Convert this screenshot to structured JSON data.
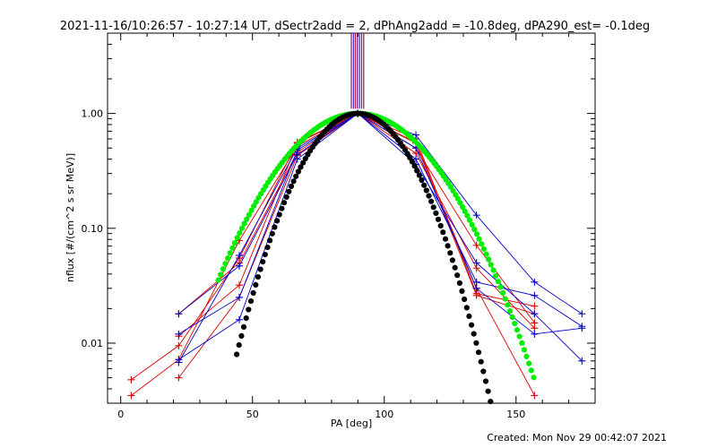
{
  "title": "2021-11-16/10:26:57 - 10:27:14 UT, dSectr2add = 2, dPhAng2add = -10.8deg, dPA290_est= -0.1deg",
  "footer": "Created: Mon Nov 29 00:42:07 2021",
  "colors": {
    "red": "#dd0000",
    "blue": "#0000cc",
    "green": "#00ee00",
    "black": "#000000",
    "purple": "#7a0a9a"
  },
  "chart_data": {
    "type": "line",
    "xlabel": "PA [deg]",
    "ylabel": "nflux [#/(cm^2 s sr MeV)]",
    "xlim": [
      -5,
      180
    ],
    "ylim": [
      0.003,
      5.0
    ],
    "yscale": "log",
    "x_ticks": [
      0,
      50,
      100,
      150
    ],
    "y_ticks": [
      0.01,
      0.1,
      1.0
    ],
    "x_tick_labels": [
      "0",
      "50",
      "100",
      "150"
    ],
    "y_tick_labels": [
      "0.01",
      "0.10",
      "1.00"
    ],
    "grid": false,
    "vertical_markers": {
      "x": [
        87.5,
        88.3,
        89.0,
        89.8,
        90.6,
        91.4,
        92.2
      ],
      "y_bottom": 1.1,
      "colors": [
        "#8a1070",
        "#2a2ad0",
        "#d01010",
        "#7a0a9a",
        "#2a2ad0",
        "#d01010",
        "#8a1070"
      ]
    },
    "series": [
      {
        "color": "#dd0000",
        "points": [
          [
            4,
            0.0048
          ],
          [
            22,
            0.0095
          ],
          [
            45,
            0.055
          ],
          [
            67,
            0.56
          ],
          [
            90,
            1.0
          ],
          [
            112,
            0.6
          ],
          [
            135,
            0.027
          ],
          [
            157,
            0.021
          ]
        ]
      },
      {
        "color": "#dd0000",
        "points": [
          [
            4,
            0.0035
          ],
          [
            22,
            0.0072
          ],
          [
            45,
            0.078
          ],
          [
            67,
            0.52
          ],
          [
            90,
            1.0
          ],
          [
            112,
            0.56
          ],
          [
            135,
            0.03
          ],
          [
            157,
            0.0035
          ]
        ]
      },
      {
        "color": "#dd0000",
        "points": [
          [
            22,
            0.018
          ],
          [
            45,
            0.05
          ],
          [
            67,
            0.46
          ],
          [
            90,
            1.0
          ],
          [
            112,
            0.5
          ],
          [
            135,
            0.071
          ],
          [
            157,
            0.015
          ]
        ]
      },
      {
        "color": "#dd0000",
        "points": [
          [
            22,
            0.0115
          ],
          [
            45,
            0.032
          ],
          [
            67,
            0.55
          ],
          [
            90,
            1.0
          ],
          [
            112,
            0.45
          ],
          [
            135,
            0.045
          ],
          [
            157,
            0.0135
          ]
        ]
      },
      {
        "color": "#dd0000",
        "points": [
          [
            22,
            0.005
          ],
          [
            45,
            0.025
          ],
          [
            67,
            0.43
          ],
          [
            90,
            1.0
          ],
          [
            112,
            0.55
          ],
          [
            135,
            0.026
          ],
          [
            157,
            0.018
          ]
        ]
      },
      {
        "color": "#0000cc",
        "points": [
          [
            22,
            0.018
          ],
          [
            45,
            0.047
          ],
          [
            67,
            0.44
          ],
          [
            90,
            1.0
          ],
          [
            112,
            0.65
          ],
          [
            135,
            0.13
          ],
          [
            157,
            0.034
          ],
          [
            175,
            0.018
          ]
        ]
      },
      {
        "color": "#0000cc",
        "points": [
          [
            22,
            0.012
          ],
          [
            45,
            0.025
          ],
          [
            67,
            0.48
          ],
          [
            90,
            1.0
          ],
          [
            112,
            0.4
          ],
          [
            135,
            0.034
          ],
          [
            157,
            0.026
          ],
          [
            175,
            0.014
          ]
        ]
      },
      {
        "color": "#0000cc",
        "points": [
          [
            22,
            0.0072
          ],
          [
            45,
            0.016
          ],
          [
            67,
            0.4
          ],
          [
            90,
            1.0
          ],
          [
            112,
            0.36
          ],
          [
            135,
            0.05
          ],
          [
            157,
            0.018
          ],
          [
            175,
            0.007
          ]
        ]
      },
      {
        "color": "#0000cc",
        "points": [
          [
            22,
            0.0068
          ],
          [
            45,
            0.058
          ],
          [
            67,
            0.5
          ],
          [
            90,
            1.0
          ],
          [
            112,
            0.5
          ],
          [
            135,
            0.03
          ],
          [
            157,
            0.012
          ],
          [
            175,
            0.0135
          ]
        ]
      }
    ],
    "fits": [
      {
        "color": "#00ee00",
        "x_start": 37,
        "x_end": 157,
        "center": 90,
        "sigma": 20.5
      },
      {
        "color": "#000000",
        "x_start": 44,
        "x_end": 150,
        "center": 90,
        "sigma": 14.8
      }
    ]
  }
}
